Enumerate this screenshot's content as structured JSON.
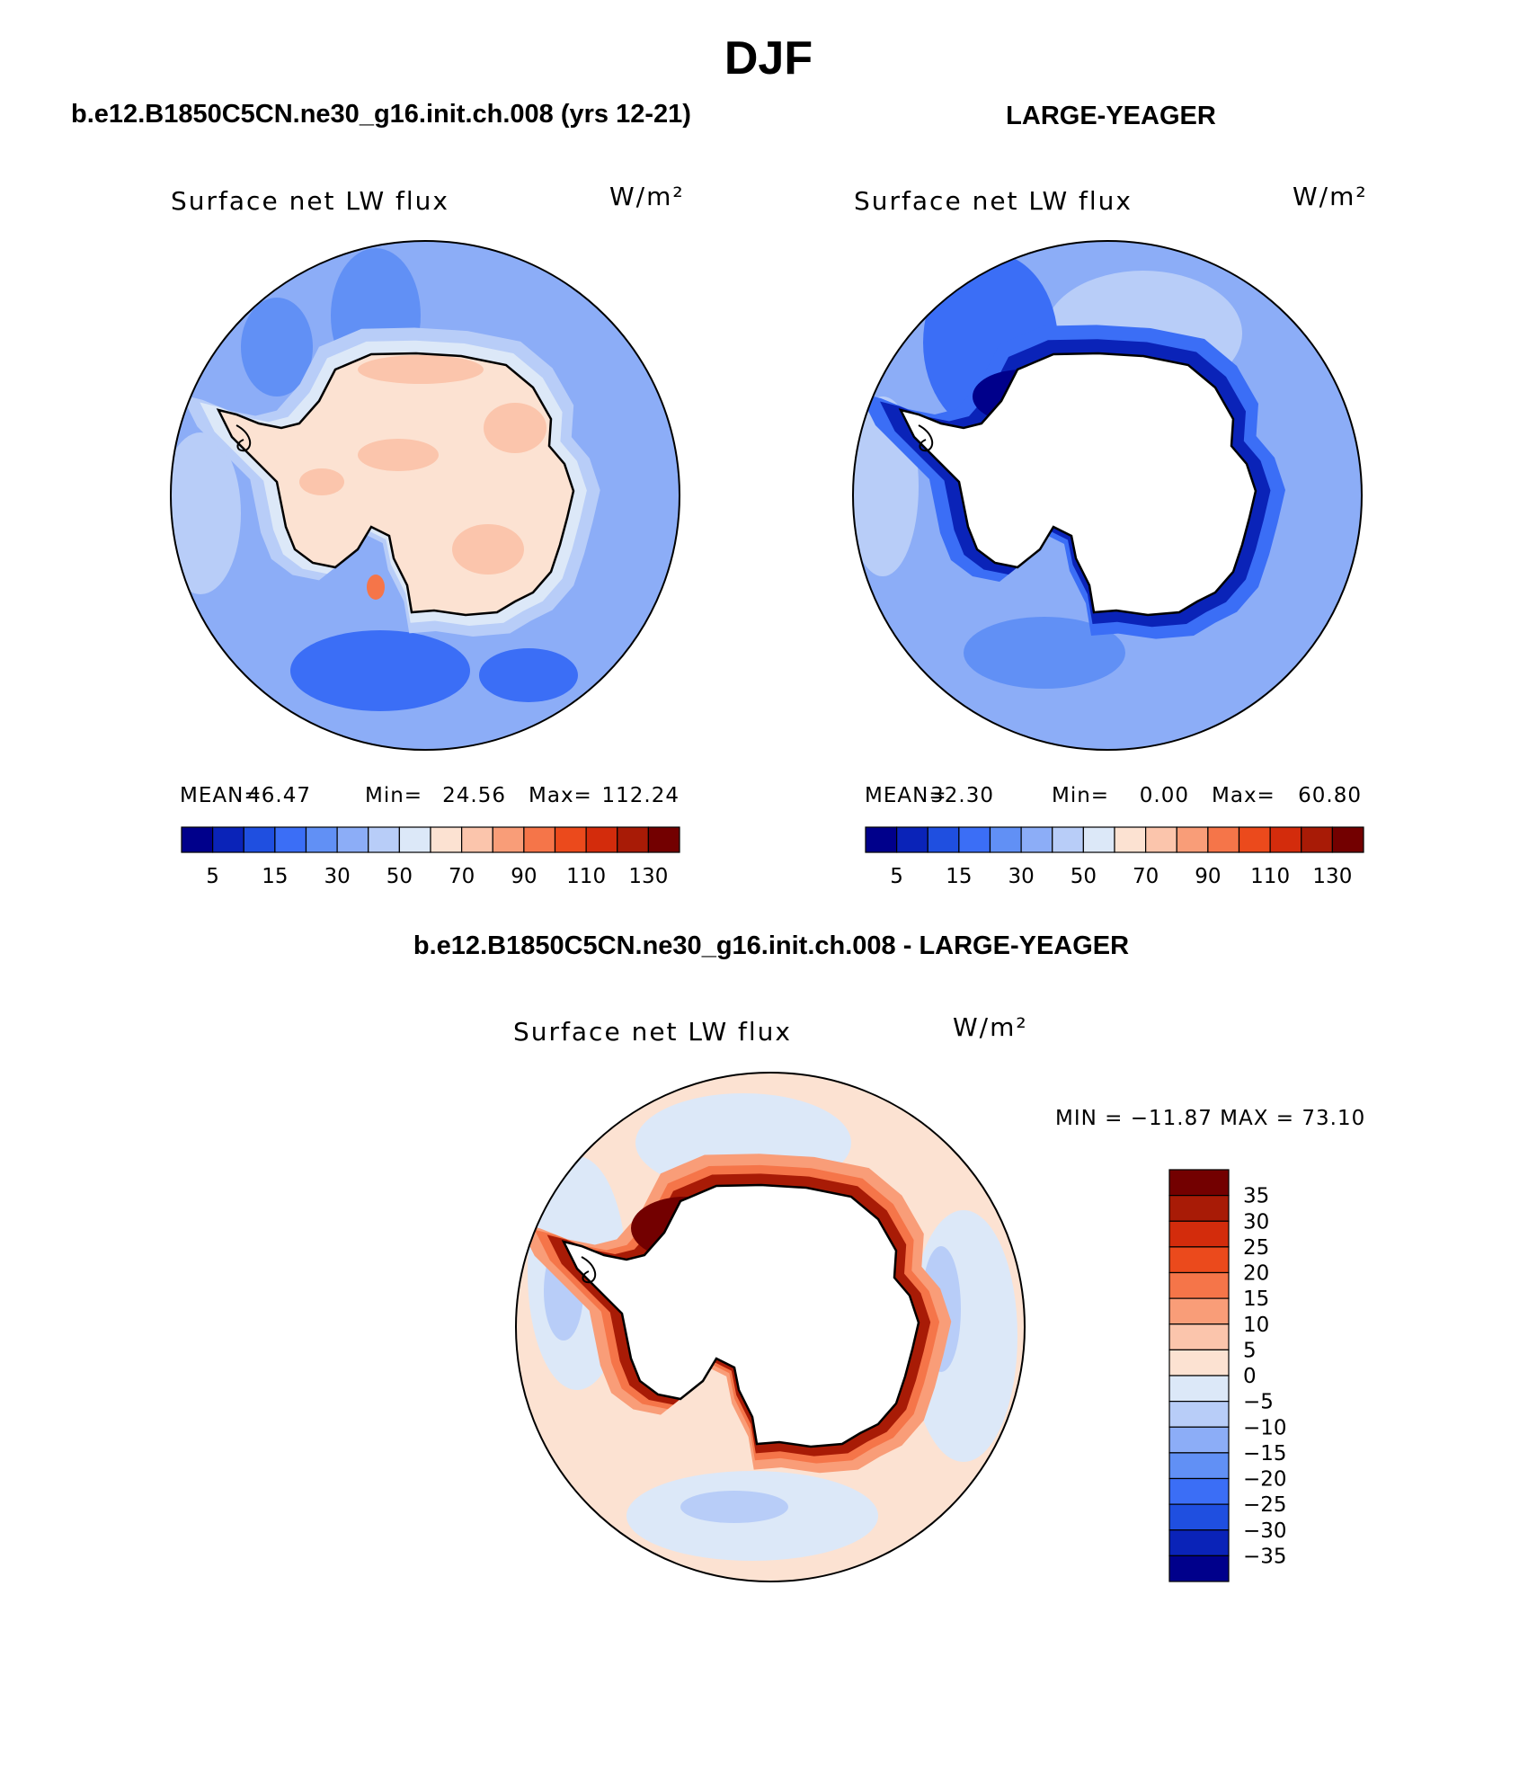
{
  "figure": {
    "title": "DJF",
    "panels": [
      {
        "case": "b.e12.B1850C5CN.ne30_g16.init.ch.008 (yrs 12-21)",
        "variable": "Surface net LW flux",
        "units": "W/m²",
        "stats": {
          "mean_label": "MEAN=",
          "mean": "46.47",
          "min_label": "Min=",
          "min": "24.56",
          "max_label": "Max=",
          "max": "112.24"
        }
      },
      {
        "case": "LARGE-YEAGER",
        "variable": "Surface net LW flux",
        "units": "W/m²",
        "stats": {
          "mean_label": "MEAN=",
          "mean": "32.30",
          "min_label": "Min=",
          "min": "0.00",
          "max_label": "Max=",
          "max": "60.80"
        }
      },
      {
        "case": "b.e12.B1850C5CN.ne30_g16.init.ch.008 - LARGE-YEAGER",
        "variable": "Surface net LW flux",
        "units": "W/m²",
        "minmax_text": "MIN = −11.87 MAX =   73.10"
      }
    ]
  },
  "colorbars": {
    "abs": {
      "colors": [
        "#00008b",
        "#0a23b8",
        "#1f4fe0",
        "#3b6ef6",
        "#6190f5",
        "#8cadf7",
        "#b8cdf8",
        "#dce8f8",
        "#fce2d2",
        "#fbc5ac",
        "#f99d78",
        "#f57549",
        "#eb4a1c",
        "#d32c0c",
        "#a81b06",
        "#730000"
      ],
      "tick_labels": [
        "5",
        "15",
        "30",
        "50",
        "70",
        "90",
        "110",
        "130"
      ]
    },
    "diff": {
      "colors_top_to_bottom": [
        "#730000",
        "#a81b06",
        "#d32c0c",
        "#eb4a1c",
        "#f57549",
        "#f99d78",
        "#fbc5ac",
        "#fce2d2",
        "#dce8f8",
        "#b8cdf8",
        "#8cadf7",
        "#6190f5",
        "#3b6ef6",
        "#1f4fe0",
        "#0a23b8",
        "#00008b"
      ],
      "tick_labels": [
        "35",
        "30",
        "25",
        "20",
        "15",
        "10",
        "5",
        "0",
        "−5",
        "−10",
        "−15",
        "−20",
        "−25",
        "−30",
        "−35"
      ]
    }
  },
  "map_colors": {
    "ocean_a": "#8cadf7",
    "ocean_a_dark": "#6190f5",
    "ocean_a_deep": "#3b6ef6",
    "ice_a": "#fce2d2",
    "ice_a_warm": "#fbc5ac",
    "ocean_b": "#8cadf7",
    "ocean_b_dark": "#3b6ef6",
    "ocean_b_deep": "#0a23b8",
    "diff_bg": "#fce2d2",
    "diff_neg": "#dce8f8",
    "diff_neg2": "#b8cdf8",
    "diff_pos_ring": "#a81b06",
    "diff_pos_mid": "#f57549"
  }
}
